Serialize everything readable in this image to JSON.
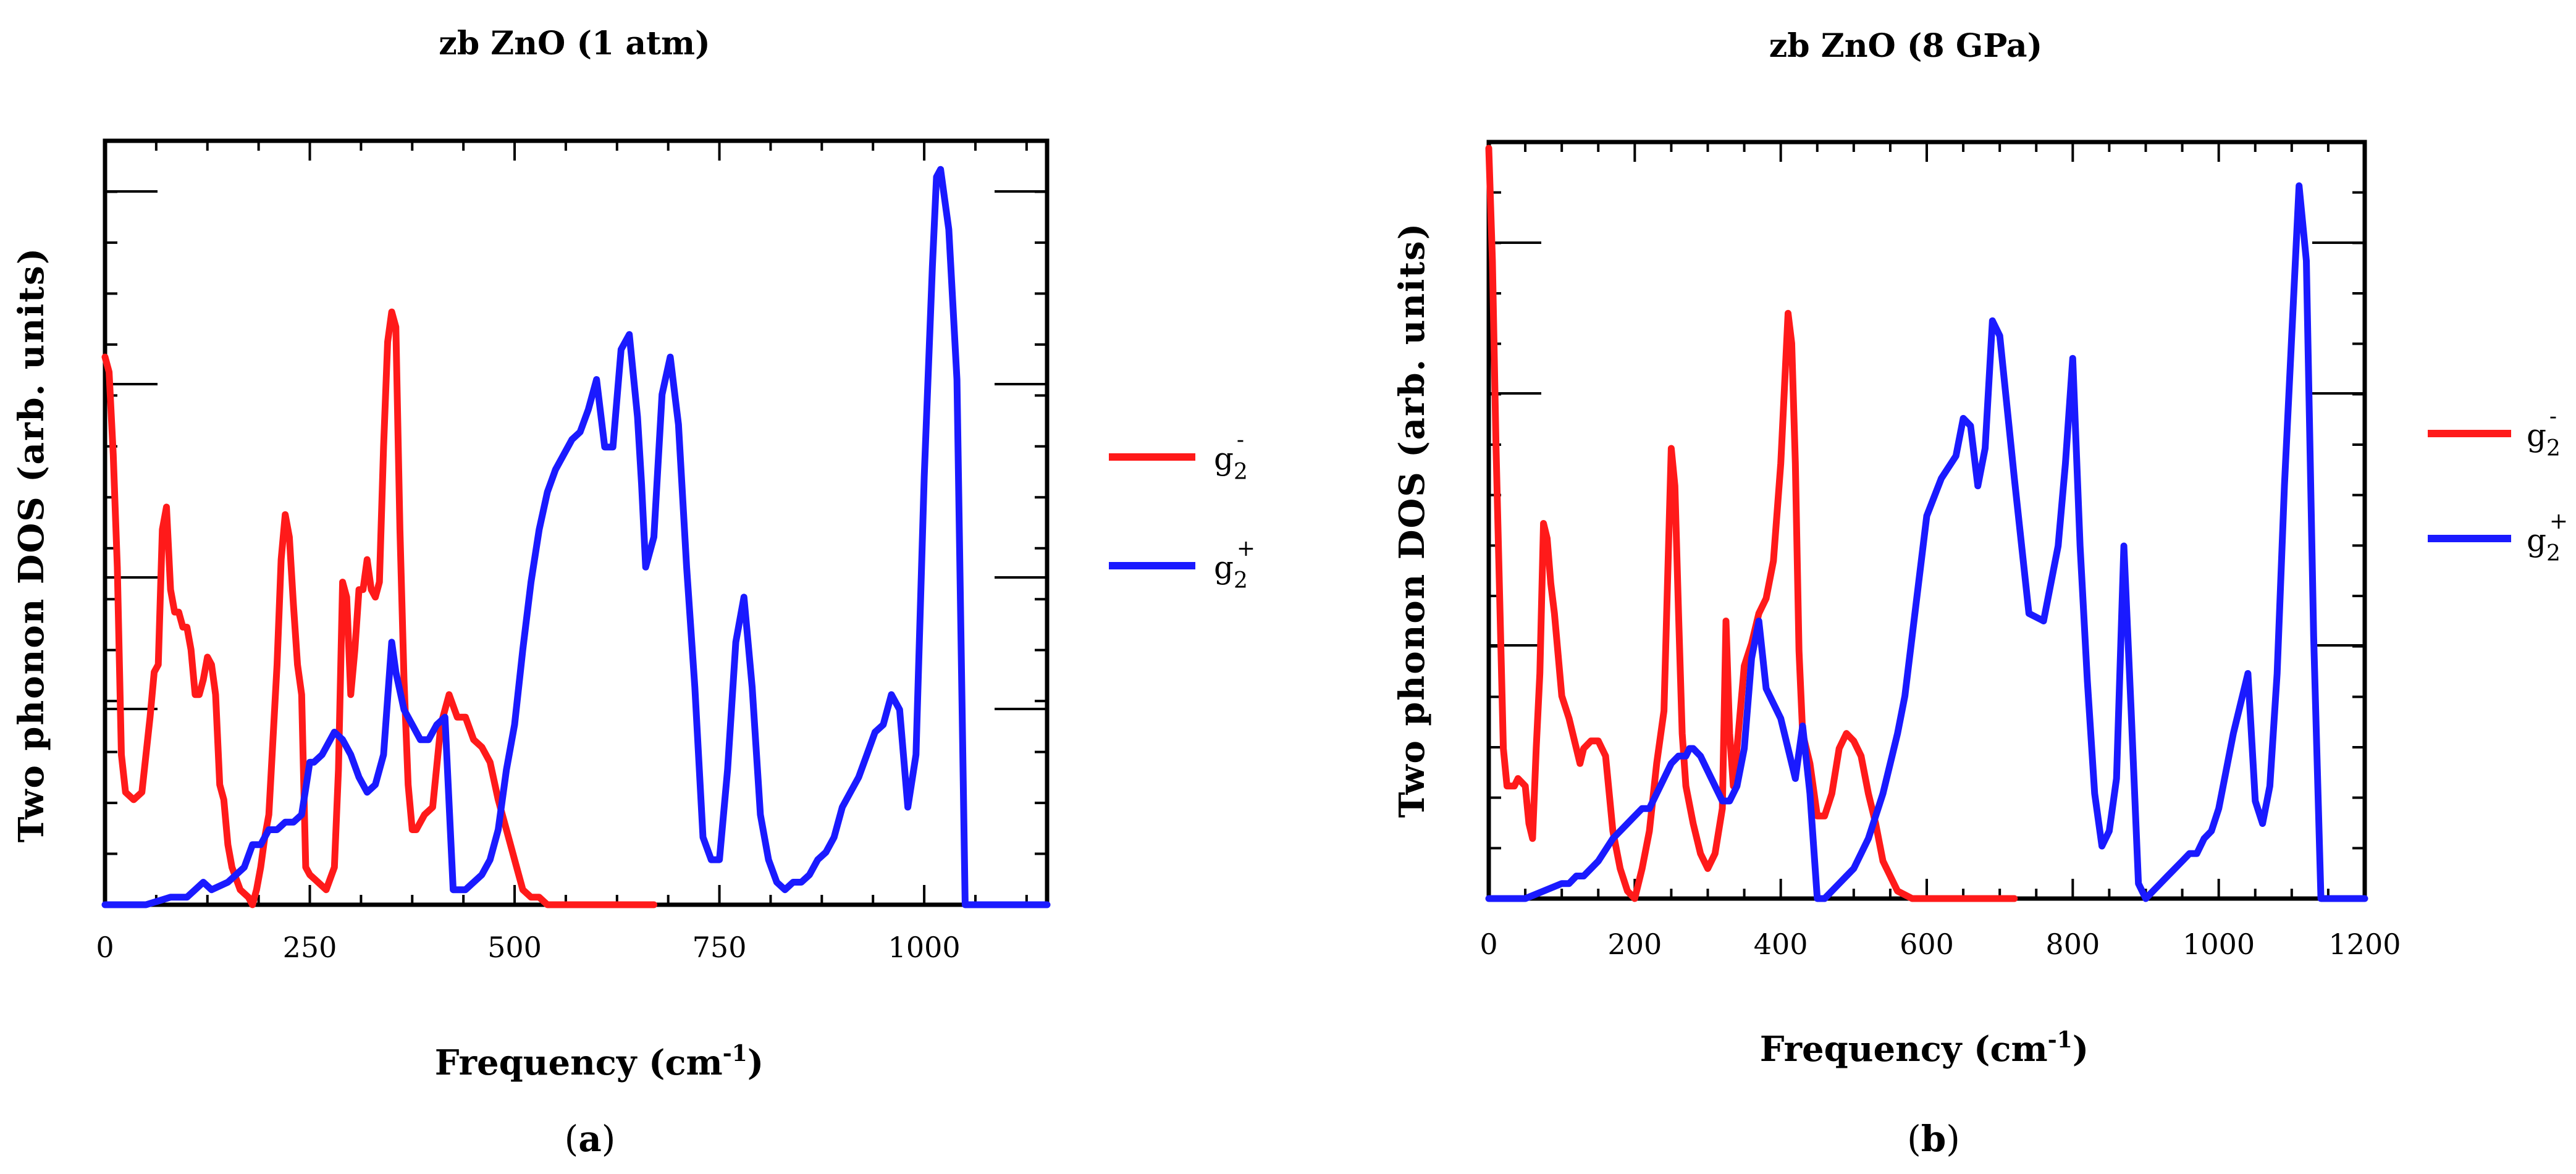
{
  "chart_data": [
    {
      "type": "line",
      "title": "zb ZnO (1 atm)",
      "xlabel": "Frequency (cm",
      "xlabel_sup": "-1",
      "xlabel_end": ")",
      "ylabel": "Two phonon DOS (arb. units)",
      "xlim": [
        0,
        1150
      ],
      "ylim": [
        0,
        1
      ],
      "xticks": [
        0,
        250,
        500,
        750,
        1000
      ],
      "xtick_labels": [
        "0",
        "250",
        "500",
        "750",
        "1000"
      ],
      "panel_label": "a",
      "legend": {
        "position": "right",
        "entries": [
          {
            "name": "g2-",
            "base": "g",
            "sub": "2",
            "sup": "-",
            "color": "#ff1a1a"
          },
          {
            "name": "g2+",
            "base": "g",
            "sub": "2",
            "sup": "+",
            "color": "#1a1aff"
          }
        ]
      },
      "series": [
        {
          "name": "g2-",
          "color": "#ff1a1a",
          "x": [
            0,
            5,
            10,
            15,
            20,
            25,
            35,
            45,
            55,
            60,
            65,
            70,
            75,
            80,
            85,
            90,
            95,
            100,
            105,
            110,
            115,
            120,
            125,
            130,
            135,
            140,
            145,
            150,
            155,
            165,
            175,
            180,
            185,
            190,
            195,
            200,
            210,
            215,
            220,
            225,
            230,
            235,
            240,
            245,
            250,
            260,
            270,
            280,
            285,
            290,
            295,
            300,
            305,
            310,
            315,
            320,
            325,
            330,
            335,
            340,
            345,
            350,
            355,
            360,
            365,
            370,
            375,
            380,
            390,
            400,
            410,
            420,
            430,
            440,
            450,
            460,
            470,
            480,
            490,
            500,
            510,
            520,
            530,
            540,
            550,
            600,
            650,
            670
          ],
          "y": [
            0.73,
            0.71,
            0.6,
            0.45,
            0.2,
            0.15,
            0.14,
            0.15,
            0.25,
            0.31,
            0.32,
            0.5,
            0.53,
            0.42,
            0.39,
            0.39,
            0.37,
            0.37,
            0.34,
            0.28,
            0.28,
            0.3,
            0.33,
            0.32,
            0.28,
            0.16,
            0.14,
            0.08,
            0.05,
            0.02,
            0.01,
            0.0,
            0.02,
            0.05,
            0.09,
            0.12,
            0.32,
            0.46,
            0.52,
            0.49,
            0.4,
            0.32,
            0.28,
            0.05,
            0.04,
            0.03,
            0.02,
            0.05,
            0.18,
            0.43,
            0.41,
            0.28,
            0.34,
            0.42,
            0.42,
            0.46,
            0.42,
            0.41,
            0.43,
            0.61,
            0.75,
            0.79,
            0.77,
            0.5,
            0.3,
            0.16,
            0.1,
            0.1,
            0.12,
            0.13,
            0.24,
            0.28,
            0.25,
            0.25,
            0.22,
            0.21,
            0.19,
            0.14,
            0.1,
            0.06,
            0.02,
            0.01,
            0.01,
            0.0,
            0.0,
            0.0,
            0.0,
            0.0
          ]
        },
        {
          "name": "g2+",
          "color": "#1a1aff",
          "x": [
            0,
            50,
            80,
            100,
            110,
            120,
            130,
            150,
            170,
            180,
            190,
            200,
            210,
            220,
            230,
            240,
            250,
            255,
            265,
            275,
            280,
            290,
            300,
            310,
            320,
            330,
            340,
            350,
            355,
            365,
            375,
            385,
            395,
            405,
            415,
            425,
            435,
            440,
            460,
            470,
            480,
            490,
            500,
            510,
            520,
            530,
            540,
            550,
            560,
            570,
            580,
            590,
            600,
            610,
            620,
            630,
            640,
            650,
            655,
            660,
            670,
            680,
            690,
            700,
            710,
            720,
            730,
            740,
            750,
            760,
            770,
            780,
            790,
            800,
            810,
            820,
            830,
            840,
            850,
            860,
            870,
            880,
            890,
            900,
            910,
            920,
            930,
            940,
            950,
            960,
            970,
            980,
            990,
            1000,
            1010,
            1015,
            1020,
            1030,
            1040,
            1050,
            1100,
            1150
          ],
          "y": [
            0.0,
            0.0,
            0.01,
            0.01,
            0.02,
            0.03,
            0.02,
            0.03,
            0.05,
            0.08,
            0.08,
            0.1,
            0.1,
            0.11,
            0.11,
            0.12,
            0.19,
            0.19,
            0.2,
            0.22,
            0.23,
            0.22,
            0.2,
            0.17,
            0.15,
            0.16,
            0.2,
            0.35,
            0.31,
            0.26,
            0.24,
            0.22,
            0.22,
            0.24,
            0.25,
            0.02,
            0.02,
            0.02,
            0.04,
            0.06,
            0.1,
            0.18,
            0.24,
            0.34,
            0.43,
            0.5,
            0.55,
            0.58,
            0.6,
            0.62,
            0.63,
            0.66,
            0.7,
            0.61,
            0.61,
            0.74,
            0.76,
            0.65,
            0.56,
            0.45,
            0.49,
            0.68,
            0.73,
            0.64,
            0.45,
            0.29,
            0.09,
            0.06,
            0.06,
            0.18,
            0.35,
            0.41,
            0.29,
            0.12,
            0.06,
            0.03,
            0.02,
            0.03,
            0.03,
            0.04,
            0.06,
            0.07,
            0.09,
            0.13,
            0.15,
            0.17,
            0.2,
            0.23,
            0.24,
            0.28,
            0.26,
            0.13,
            0.2,
            0.57,
            0.85,
            0.97,
            0.98,
            0.9,
            0.7,
            0.0,
            0.0,
            0.0
          ]
        }
      ]
    },
    {
      "type": "line",
      "title": "zb ZnO (8 GPa)",
      "xlabel": "Frequency (cm",
      "xlabel_sup": "-1",
      "xlabel_end": ")",
      "ylabel": "Two phonon DOS (arb. units)",
      "xlim": [
        0,
        1200
      ],
      "ylim": [
        0,
        1
      ],
      "xticks": [
        0,
        200,
        400,
        600,
        800,
        1000,
        1200
      ],
      "xtick_labels": [
        "0",
        "200",
        "400",
        "600",
        "800",
        "1000",
        "1200"
      ],
      "panel_label": "b",
      "legend": {
        "position": "right",
        "entries": [
          {
            "name": "g2-",
            "base": "g",
            "sub": "2",
            "sup": "-",
            "color": "#ff1a1a"
          },
          {
            "name": "g2+",
            "base": "g",
            "sub": "2",
            "sup": "+",
            "color": "#1a1aff"
          }
        ]
      },
      "series": [
        {
          "name": "g2-",
          "color": "#ff1a1a",
          "x": [
            0,
            5,
            10,
            15,
            20,
            25,
            35,
            40,
            50,
            55,
            60,
            65,
            70,
            75,
            80,
            85,
            90,
            100,
            110,
            120,
            125,
            130,
            140,
            150,
            160,
            170,
            180,
            190,
            200,
            210,
            220,
            230,
            240,
            250,
            255,
            260,
            265,
            270,
            280,
            290,
            300,
            310,
            320,
            325,
            330,
            335,
            340,
            350,
            360,
            370,
            380,
            390,
            400,
            410,
            415,
            420,
            425,
            430,
            440,
            450,
            460,
            470,
            480,
            490,
            500,
            510,
            520,
            530,
            540,
            550,
            560,
            580,
            600,
            650,
            700,
            720
          ],
          "y": [
            1.0,
            0.85,
            0.6,
            0.4,
            0.2,
            0.15,
            0.15,
            0.16,
            0.15,
            0.1,
            0.08,
            0.2,
            0.3,
            0.5,
            0.48,
            0.42,
            0.38,
            0.27,
            0.24,
            0.2,
            0.18,
            0.2,
            0.21,
            0.21,
            0.19,
            0.09,
            0.04,
            0.01,
            0.0,
            0.04,
            0.09,
            0.18,
            0.25,
            0.6,
            0.55,
            0.38,
            0.22,
            0.15,
            0.1,
            0.06,
            0.04,
            0.06,
            0.12,
            0.37,
            0.22,
            0.15,
            0.2,
            0.31,
            0.34,
            0.38,
            0.4,
            0.45,
            0.58,
            0.78,
            0.74,
            0.58,
            0.33,
            0.22,
            0.18,
            0.11,
            0.11,
            0.14,
            0.2,
            0.22,
            0.21,
            0.19,
            0.14,
            0.1,
            0.05,
            0.03,
            0.01,
            0.0,
            0.0,
            0.0,
            0.0,
            0.0
          ]
        },
        {
          "name": "g2+",
          "color": "#1a1aff",
          "x": [
            0,
            50,
            100,
            110,
            120,
            130,
            150,
            170,
            180,
            190,
            200,
            210,
            220,
            230,
            240,
            250,
            260,
            270,
            275,
            280,
            290,
            300,
            310,
            320,
            330,
            340,
            350,
            360,
            370,
            380,
            390,
            400,
            410,
            420,
            430,
            440,
            450,
            460,
            470,
            480,
            490,
            500,
            510,
            520,
            530,
            540,
            550,
            560,
            570,
            580,
            590,
            600,
            620,
            640,
            650,
            660,
            670,
            680,
            690,
            700,
            720,
            740,
            760,
            780,
            790,
            800,
            810,
            820,
            830,
            840,
            850,
            860,
            870,
            880,
            890,
            900,
            910,
            920,
            930,
            940,
            950,
            960,
            970,
            980,
            990,
            1000,
            1010,
            1020,
            1030,
            1040,
            1050,
            1060,
            1070,
            1080,
            1090,
            1100,
            1110,
            1120,
            1130,
            1140,
            1160,
            1200
          ],
          "y": [
            0.0,
            0.0,
            0.02,
            0.02,
            0.03,
            0.03,
            0.05,
            0.08,
            0.09,
            0.1,
            0.11,
            0.12,
            0.12,
            0.14,
            0.16,
            0.18,
            0.19,
            0.19,
            0.2,
            0.2,
            0.19,
            0.17,
            0.15,
            0.13,
            0.13,
            0.15,
            0.2,
            0.32,
            0.37,
            0.28,
            0.26,
            0.24,
            0.2,
            0.16,
            0.23,
            0.14,
            0.0,
            0.0,
            0.01,
            0.02,
            0.03,
            0.04,
            0.06,
            0.08,
            0.11,
            0.14,
            0.18,
            0.22,
            0.27,
            0.35,
            0.43,
            0.51,
            0.56,
            0.59,
            0.64,
            0.63,
            0.55,
            0.6,
            0.77,
            0.75,
            0.56,
            0.38,
            0.37,
            0.47,
            0.58,
            0.72,
            0.47,
            0.29,
            0.14,
            0.07,
            0.09,
            0.16,
            0.47,
            0.25,
            0.02,
            0.0,
            0.01,
            0.02,
            0.03,
            0.04,
            0.05,
            0.06,
            0.06,
            0.08,
            0.09,
            0.12,
            0.17,
            0.22,
            0.26,
            0.3,
            0.13,
            0.1,
            0.15,
            0.3,
            0.55,
            0.75,
            0.95,
            0.85,
            0.35,
            0.0,
            0.0,
            0.0
          ]
        }
      ]
    }
  ]
}
